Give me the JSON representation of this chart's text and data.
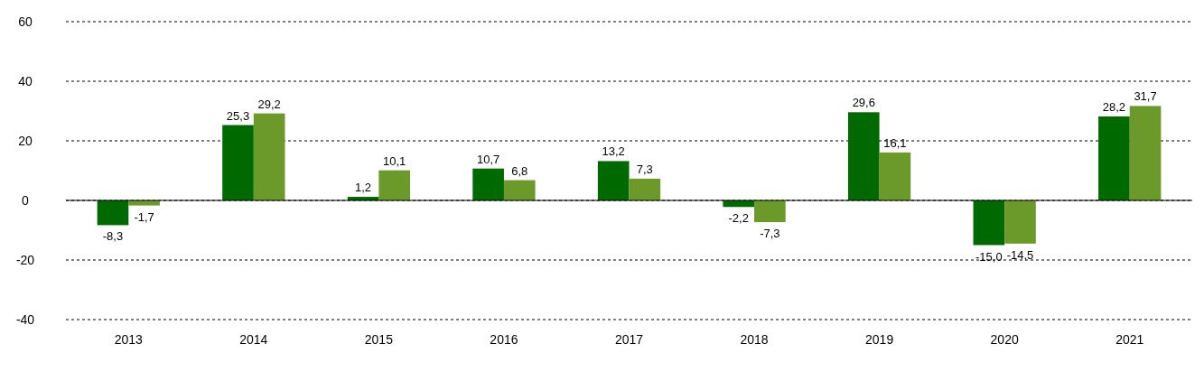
{
  "chart_data": {
    "type": "bar",
    "categories": [
      "2013",
      "2014",
      "2015",
      "2016",
      "2017",
      "2018",
      "2019",
      "2020",
      "2021"
    ],
    "series": [
      {
        "color": "#006a00",
        "values": [
          -8.3,
          25.3,
          1.2,
          10.7,
          13.2,
          -2.2,
          29.6,
          -15.0,
          28.2
        ],
        "value_labels": [
          "-8,3",
          "25,3",
          "1,2",
          "10,7",
          "13,2",
          "-2,2",
          "29,6",
          "-15,0",
          "28,2"
        ]
      },
      {
        "color": "#6b9a2a",
        "values": [
          -1.7,
          29.2,
          10.1,
          6.8,
          7.3,
          -7.3,
          16.1,
          -14.5,
          31.7
        ],
        "value_labels": [
          "-1,7",
          "29,2",
          "10,1",
          "6,8",
          "7,3",
          "-7,3",
          "16,1",
          "-14,5",
          "31,7"
        ]
      }
    ],
    "ylim": [
      -40,
      60
    ],
    "yticks": [
      -40,
      -20,
      0,
      20,
      40,
      60
    ],
    "grid": "y"
  }
}
